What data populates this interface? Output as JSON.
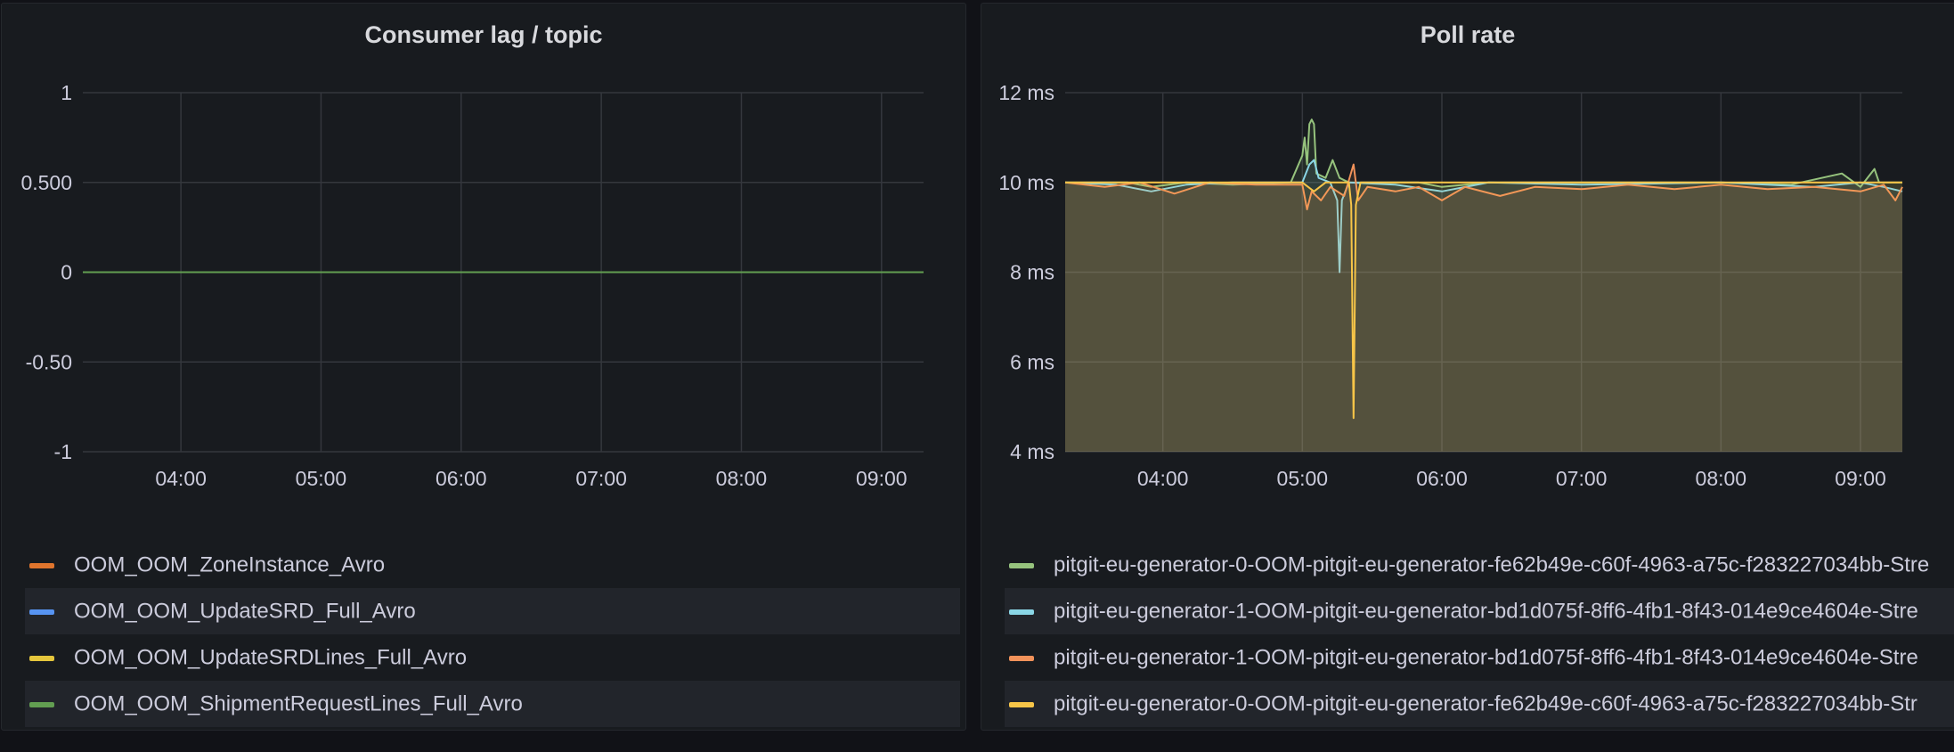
{
  "chart_data": [
    {
      "type": "line",
      "title": "Consumer lag / topic",
      "x_ticks": [
        "04:00",
        "05:00",
        "06:00",
        "07:00",
        "08:00",
        "09:00"
      ],
      "xlim": [
        "03:18",
        "09:18"
      ],
      "y_ticks": [
        "1",
        "0.500",
        "0",
        "-0.50",
        "-1"
      ],
      "ylim": [
        -1,
        1
      ],
      "grid": true,
      "legend_position": "bottom",
      "series": [
        {
          "name": "OOM_OOM_ZoneInstance_Avro",
          "color": "#e0752d",
          "values": [
            0,
            0
          ]
        },
        {
          "name": "OOM_OOM_UpdateSRD_Full_Avro",
          "color": "#5794f2",
          "values": [
            0,
            0
          ]
        },
        {
          "name": "OOM_OOM_UpdateSRDLines_Full_Avro",
          "color": "#e5c63c",
          "values": [
            0,
            0
          ]
        },
        {
          "name": "OOM_OOM_ShipmentRequestLines_Full_Avro",
          "color": "#629e51",
          "values": [
            0,
            0
          ]
        }
      ]
    },
    {
      "type": "area",
      "title": "Poll rate",
      "unit": "ms",
      "x_ticks": [
        "04:00",
        "05:00",
        "06:00",
        "07:00",
        "08:00",
        "09:00"
      ],
      "xlim": [
        "03:18",
        "09:18"
      ],
      "y_ticks": [
        "12 ms",
        "10 ms",
        "8 ms",
        "6 ms",
        "4 ms"
      ],
      "ylim": [
        4,
        12
      ],
      "grid": true,
      "legend_position": "bottom",
      "series": [
        {
          "name": "pitgit-eu-generator-0-OOM-pitgit-eu-generator-fe62b49e-c60f-4963-a75c-f283227034bb-Stre",
          "color": "#96c37d",
          "points": [
            [
              "03:18",
              10
            ],
            [
              "03:45",
              10
            ],
            [
              "03:55",
              9.9
            ],
            [
              "04:10",
              10
            ],
            [
              "04:30",
              9.95
            ],
            [
              "04:55",
              10
            ],
            [
              "05:00",
              10.6
            ],
            [
              "05:01",
              11.0
            ],
            [
              "05:02",
              10.4
            ],
            [
              "05:03",
              11.3
            ],
            [
              "05:04",
              11.4
            ],
            [
              "05:05",
              11.3
            ],
            [
              "05:06",
              10.2
            ],
            [
              "05:10",
              10.1
            ],
            [
              "05:13",
              10.5
            ],
            [
              "05:16",
              10.1
            ],
            [
              "05:20",
              10.0
            ],
            [
              "05:30",
              10.0
            ],
            [
              "05:50",
              10.0
            ],
            [
              "06:00",
              9.9
            ],
            [
              "06:20",
              10.0
            ],
            [
              "07:00",
              10.0
            ],
            [
              "07:30",
              10.0
            ],
            [
              "08:00",
              10.0
            ],
            [
              "08:30",
              9.95
            ],
            [
              "08:52",
              10.2
            ],
            [
              "09:00",
              9.9
            ],
            [
              "09:06",
              10.3
            ],
            [
              "09:08",
              10.0
            ],
            [
              "09:18",
              10.0
            ]
          ]
        },
        {
          "name": "pitgit-eu-generator-1-OOM-pitgit-eu-generator-bd1d075f-8ff6-4fb1-8f43-014e9ce4604e-Stre",
          "color": "#8ad6e6",
          "points": [
            [
              "03:18",
              10
            ],
            [
              "03:40",
              9.95
            ],
            [
              "03:55",
              9.8
            ],
            [
              "04:10",
              9.95
            ],
            [
              "04:30",
              10
            ],
            [
              "05:00",
              10
            ],
            [
              "05:03",
              10.4
            ],
            [
              "05:05",
              10.5
            ],
            [
              "05:07",
              10.1
            ],
            [
              "05:12",
              10.0
            ],
            [
              "05:15",
              9.6
            ],
            [
              "05:16",
              8.0
            ],
            [
              "05:17",
              9.6
            ],
            [
              "05:20",
              10.0
            ],
            [
              "05:40",
              9.95
            ],
            [
              "06:00",
              9.8
            ],
            [
              "06:20",
              10.0
            ],
            [
              "07:00",
              9.95
            ],
            [
              "08:00",
              10.0
            ],
            [
              "08:40",
              9.9
            ],
            [
              "09:00",
              10.0
            ],
            [
              "09:10",
              9.9
            ],
            [
              "09:18",
              9.8
            ]
          ]
        },
        {
          "name": "pitgit-eu-generator-1-OOM-pitgit-eu-generator-bd1d075f-8ff6-4fb1-8f43-014e9ce4604e-Stre",
          "color": "#f2925a",
          "points": [
            [
              "03:18",
              10
            ],
            [
              "03:35",
              9.9
            ],
            [
              "03:50",
              10
            ],
            [
              "04:05",
              9.75
            ],
            [
              "04:20",
              10
            ],
            [
              "04:40",
              9.95
            ],
            [
              "05:00",
              9.95
            ],
            [
              "05:02",
              9.4
            ],
            [
              "05:04",
              9.8
            ],
            [
              "05:08",
              9.6
            ],
            [
              "05:12",
              9.9
            ],
            [
              "05:18",
              9.7
            ],
            [
              "05:22",
              10.4
            ],
            [
              "05:24",
              9.6
            ],
            [
              "05:28",
              9.9
            ],
            [
              "05:40",
              9.8
            ],
            [
              "05:50",
              9.9
            ],
            [
              "06:00",
              9.6
            ],
            [
              "06:10",
              9.9
            ],
            [
              "06:25",
              9.7
            ],
            [
              "06:40",
              9.9
            ],
            [
              "07:00",
              9.85
            ],
            [
              "07:20",
              9.95
            ],
            [
              "07:40",
              9.85
            ],
            [
              "08:00",
              9.95
            ],
            [
              "08:20",
              9.85
            ],
            [
              "08:40",
              9.9
            ],
            [
              "09:00",
              9.8
            ],
            [
              "09:10",
              9.95
            ],
            [
              "09:15",
              9.6
            ],
            [
              "09:18",
              9.9
            ]
          ]
        },
        {
          "name": "pitgit-eu-generator-0-OOM-pitgit-eu-generator-fe62b49e-c60f-4963-a75c-f283227034bb-Str",
          "color": "#f7c548",
          "points": [
            [
              "03:18",
              10
            ],
            [
              "04:00",
              10
            ],
            [
              "05:00",
              10
            ],
            [
              "05:05",
              9.8
            ],
            [
              "05:10",
              10
            ],
            [
              "05:20",
              10
            ],
            [
              "05:21",
              9.5
            ],
            [
              "05:22",
              4.75
            ],
            [
              "05:23",
              9.5
            ],
            [
              "05:25",
              10
            ],
            [
              "06:00",
              10
            ],
            [
              "07:00",
              10
            ],
            [
              "08:00",
              10
            ],
            [
              "09:00",
              10
            ],
            [
              "09:18",
              10
            ]
          ]
        }
      ]
    }
  ]
}
